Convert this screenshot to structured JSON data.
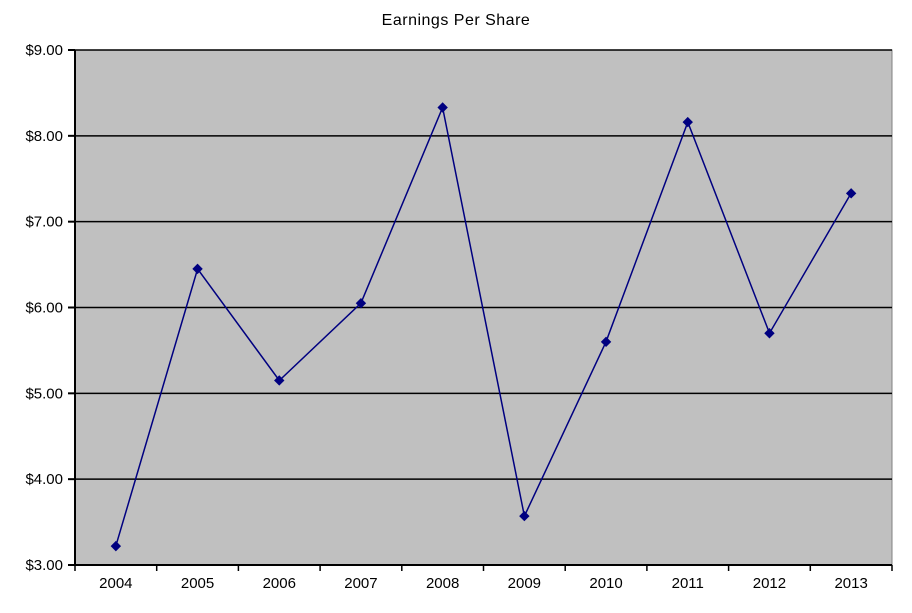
{
  "chart_data": {
    "type": "line",
    "title": "Earnings Per Share",
    "categories": [
      "2004",
      "2005",
      "2006",
      "2007",
      "2008",
      "2009",
      "2010",
      "2011",
      "2012",
      "2013"
    ],
    "series": [
      {
        "name": "Earnings Per Share",
        "values": [
          3.22,
          6.45,
          5.15,
          6.05,
          8.33,
          3.57,
          5.6,
          8.16,
          5.7,
          7.33
        ]
      }
    ],
    "xlabel": "",
    "ylabel": "",
    "ylim": [
      3,
      9
    ],
    "y_tick_step": 1,
    "y_tick_labels": [
      "$3.00",
      "$4.00",
      "$5.00",
      "$6.00",
      "$7.00",
      "$8.00",
      "$9.00"
    ],
    "grid": "horizontal",
    "legend": "none",
    "marker": "diamond",
    "colors": {
      "line": "#000080",
      "marker": "#000080",
      "plot_background": "#c0c0c0",
      "plot_border": "#808080",
      "gridline": "#000000",
      "axis": "#000000",
      "text": "#000000",
      "page_background": "#ffffff"
    }
  }
}
